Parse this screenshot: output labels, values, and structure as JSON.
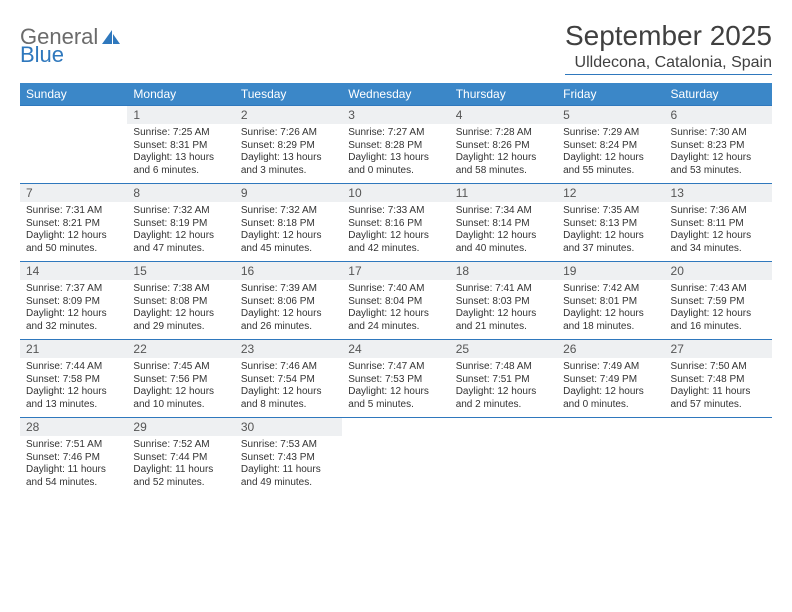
{
  "brand": {
    "part1": "General",
    "part2": "Blue"
  },
  "title": "September 2025",
  "location": "Ulldecona, Catalonia, Spain",
  "colors": {
    "header_bg": "#3b87c8",
    "header_text": "#ffffff",
    "daynum_bg": "#eef0f2",
    "border": "#2f78bd",
    "text": "#333333",
    "logo_gray": "#6b6b6b",
    "logo_blue": "#2f78bd",
    "background": "#ffffff"
  },
  "typography": {
    "title_fontsize": 28,
    "location_fontsize": 16,
    "dayheader_fontsize": 12,
    "daynum_fontsize": 12,
    "cell_fontsize": 10
  },
  "day_headers": [
    "Sunday",
    "Monday",
    "Tuesday",
    "Wednesday",
    "Thursday",
    "Friday",
    "Saturday"
  ],
  "weeks": [
    [
      null,
      {
        "n": "1",
        "sunrise": "Sunrise: 7:25 AM",
        "sunset": "Sunset: 8:31 PM",
        "daylight": "Daylight: 13 hours and 6 minutes."
      },
      {
        "n": "2",
        "sunrise": "Sunrise: 7:26 AM",
        "sunset": "Sunset: 8:29 PM",
        "daylight": "Daylight: 13 hours and 3 minutes."
      },
      {
        "n": "3",
        "sunrise": "Sunrise: 7:27 AM",
        "sunset": "Sunset: 8:28 PM",
        "daylight": "Daylight: 13 hours and 0 minutes."
      },
      {
        "n": "4",
        "sunrise": "Sunrise: 7:28 AM",
        "sunset": "Sunset: 8:26 PM",
        "daylight": "Daylight: 12 hours and 58 minutes."
      },
      {
        "n": "5",
        "sunrise": "Sunrise: 7:29 AM",
        "sunset": "Sunset: 8:24 PM",
        "daylight": "Daylight: 12 hours and 55 minutes."
      },
      {
        "n": "6",
        "sunrise": "Sunrise: 7:30 AM",
        "sunset": "Sunset: 8:23 PM",
        "daylight": "Daylight: 12 hours and 53 minutes."
      }
    ],
    [
      {
        "n": "7",
        "sunrise": "Sunrise: 7:31 AM",
        "sunset": "Sunset: 8:21 PM",
        "daylight": "Daylight: 12 hours and 50 minutes."
      },
      {
        "n": "8",
        "sunrise": "Sunrise: 7:32 AM",
        "sunset": "Sunset: 8:19 PM",
        "daylight": "Daylight: 12 hours and 47 minutes."
      },
      {
        "n": "9",
        "sunrise": "Sunrise: 7:32 AM",
        "sunset": "Sunset: 8:18 PM",
        "daylight": "Daylight: 12 hours and 45 minutes."
      },
      {
        "n": "10",
        "sunrise": "Sunrise: 7:33 AM",
        "sunset": "Sunset: 8:16 PM",
        "daylight": "Daylight: 12 hours and 42 minutes."
      },
      {
        "n": "11",
        "sunrise": "Sunrise: 7:34 AM",
        "sunset": "Sunset: 8:14 PM",
        "daylight": "Daylight: 12 hours and 40 minutes."
      },
      {
        "n": "12",
        "sunrise": "Sunrise: 7:35 AM",
        "sunset": "Sunset: 8:13 PM",
        "daylight": "Daylight: 12 hours and 37 minutes."
      },
      {
        "n": "13",
        "sunrise": "Sunrise: 7:36 AM",
        "sunset": "Sunset: 8:11 PM",
        "daylight": "Daylight: 12 hours and 34 minutes."
      }
    ],
    [
      {
        "n": "14",
        "sunrise": "Sunrise: 7:37 AM",
        "sunset": "Sunset: 8:09 PM",
        "daylight": "Daylight: 12 hours and 32 minutes."
      },
      {
        "n": "15",
        "sunrise": "Sunrise: 7:38 AM",
        "sunset": "Sunset: 8:08 PM",
        "daylight": "Daylight: 12 hours and 29 minutes."
      },
      {
        "n": "16",
        "sunrise": "Sunrise: 7:39 AM",
        "sunset": "Sunset: 8:06 PM",
        "daylight": "Daylight: 12 hours and 26 minutes."
      },
      {
        "n": "17",
        "sunrise": "Sunrise: 7:40 AM",
        "sunset": "Sunset: 8:04 PM",
        "daylight": "Daylight: 12 hours and 24 minutes."
      },
      {
        "n": "18",
        "sunrise": "Sunrise: 7:41 AM",
        "sunset": "Sunset: 8:03 PM",
        "daylight": "Daylight: 12 hours and 21 minutes."
      },
      {
        "n": "19",
        "sunrise": "Sunrise: 7:42 AM",
        "sunset": "Sunset: 8:01 PM",
        "daylight": "Daylight: 12 hours and 18 minutes."
      },
      {
        "n": "20",
        "sunrise": "Sunrise: 7:43 AM",
        "sunset": "Sunset: 7:59 PM",
        "daylight": "Daylight: 12 hours and 16 minutes."
      }
    ],
    [
      {
        "n": "21",
        "sunrise": "Sunrise: 7:44 AM",
        "sunset": "Sunset: 7:58 PM",
        "daylight": "Daylight: 12 hours and 13 minutes."
      },
      {
        "n": "22",
        "sunrise": "Sunrise: 7:45 AM",
        "sunset": "Sunset: 7:56 PM",
        "daylight": "Daylight: 12 hours and 10 minutes."
      },
      {
        "n": "23",
        "sunrise": "Sunrise: 7:46 AM",
        "sunset": "Sunset: 7:54 PM",
        "daylight": "Daylight: 12 hours and 8 minutes."
      },
      {
        "n": "24",
        "sunrise": "Sunrise: 7:47 AM",
        "sunset": "Sunset: 7:53 PM",
        "daylight": "Daylight: 12 hours and 5 minutes."
      },
      {
        "n": "25",
        "sunrise": "Sunrise: 7:48 AM",
        "sunset": "Sunset: 7:51 PM",
        "daylight": "Daylight: 12 hours and 2 minutes."
      },
      {
        "n": "26",
        "sunrise": "Sunrise: 7:49 AM",
        "sunset": "Sunset: 7:49 PM",
        "daylight": "Daylight: 12 hours and 0 minutes."
      },
      {
        "n": "27",
        "sunrise": "Sunrise: 7:50 AM",
        "sunset": "Sunset: 7:48 PM",
        "daylight": "Daylight: 11 hours and 57 minutes."
      }
    ],
    [
      {
        "n": "28",
        "sunrise": "Sunrise: 7:51 AM",
        "sunset": "Sunset: 7:46 PM",
        "daylight": "Daylight: 11 hours and 54 minutes."
      },
      {
        "n": "29",
        "sunrise": "Sunrise: 7:52 AM",
        "sunset": "Sunset: 7:44 PM",
        "daylight": "Daylight: 11 hours and 52 minutes."
      },
      {
        "n": "30",
        "sunrise": "Sunrise: 7:53 AM",
        "sunset": "Sunset: 7:43 PM",
        "daylight": "Daylight: 11 hours and 49 minutes."
      },
      null,
      null,
      null,
      null
    ]
  ]
}
